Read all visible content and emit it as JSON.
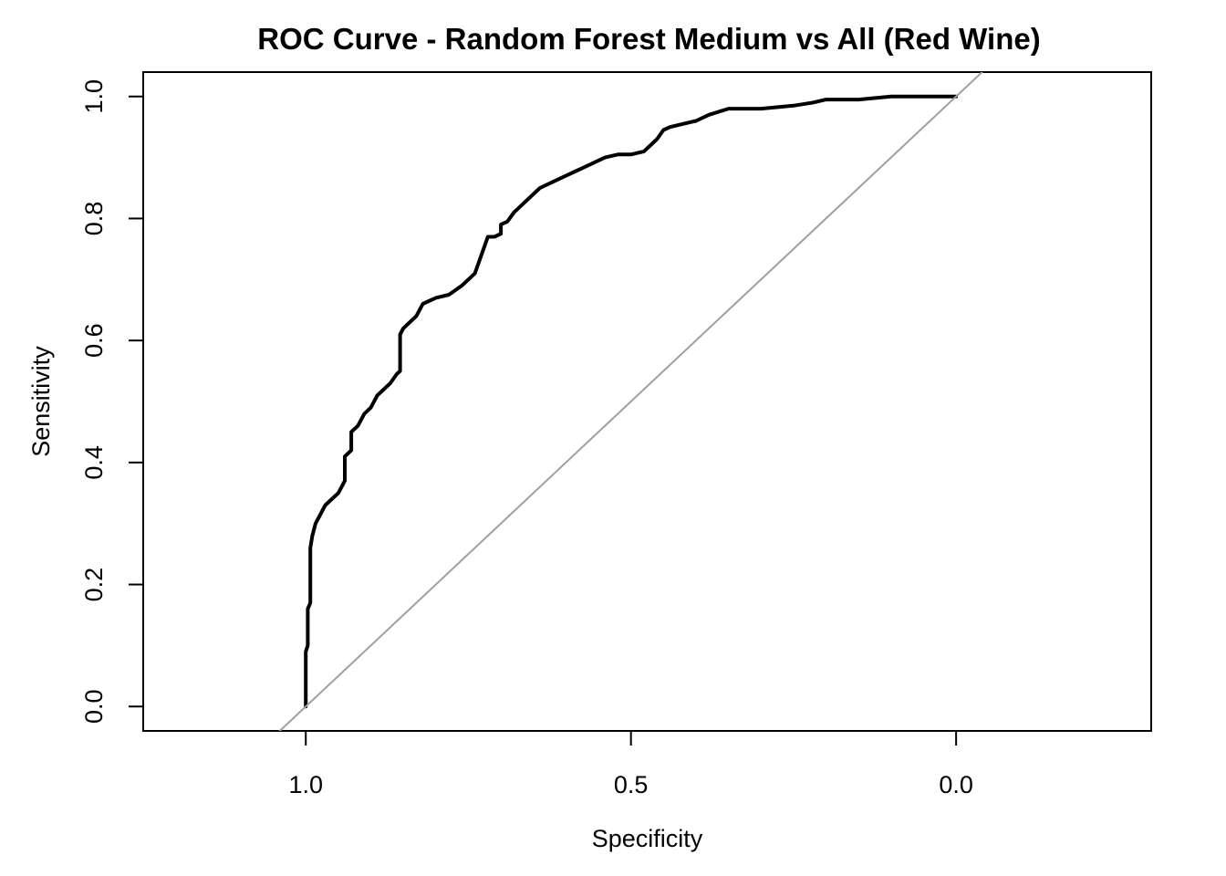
{
  "chart_data": {
    "type": "line",
    "title": "ROC Curve - Random Forest  Medium vs All (Red Wine)",
    "xlabel": "Specificity",
    "ylabel": "Sensitivity",
    "x_reversed": true,
    "xlim": [
      1.25,
      -0.3
    ],
    "ylim": [
      -0.04,
      1.04
    ],
    "xticks": [
      1.0,
      0.5,
      0.0
    ],
    "xtick_labels": [
      "1.0",
      "0.5",
      "0.0"
    ],
    "yticks": [
      0.0,
      0.2,
      0.4,
      0.6,
      0.8,
      1.0
    ],
    "ytick_labels": [
      "0.0",
      "0.2",
      "0.4",
      "0.6",
      "0.8",
      "1.0"
    ],
    "grid": false,
    "legend": "none",
    "series": [
      {
        "role": "roc-curve",
        "color": "#000000",
        "specificity": [
          1.0,
          1.0,
          0.997,
          0.997,
          0.993,
          0.993,
          0.99,
          0.985,
          0.98,
          0.97,
          0.96,
          0.95,
          0.94,
          0.94,
          0.93,
          0.93,
          0.92,
          0.91,
          0.9,
          0.89,
          0.88,
          0.87,
          0.86,
          0.855,
          0.855,
          0.85,
          0.84,
          0.83,
          0.82,
          0.8,
          0.78,
          0.76,
          0.75,
          0.74,
          0.73,
          0.72,
          0.71,
          0.7,
          0.7,
          0.69,
          0.68,
          0.66,
          0.64,
          0.62,
          0.6,
          0.58,
          0.56,
          0.54,
          0.52,
          0.5,
          0.48,
          0.46,
          0.45,
          0.44,
          0.42,
          0.4,
          0.38,
          0.35,
          0.3,
          0.25,
          0.22,
          0.2,
          0.15,
          0.1,
          0.05,
          0.0
        ],
        "sensitivity": [
          0.0,
          0.09,
          0.1,
          0.16,
          0.17,
          0.26,
          0.28,
          0.3,
          0.31,
          0.33,
          0.34,
          0.35,
          0.37,
          0.41,
          0.42,
          0.45,
          0.46,
          0.48,
          0.49,
          0.51,
          0.52,
          0.53,
          0.545,
          0.55,
          0.61,
          0.62,
          0.63,
          0.64,
          0.66,
          0.67,
          0.675,
          0.69,
          0.7,
          0.71,
          0.74,
          0.77,
          0.77,
          0.775,
          0.79,
          0.795,
          0.81,
          0.83,
          0.85,
          0.86,
          0.87,
          0.88,
          0.89,
          0.9,
          0.905,
          0.905,
          0.91,
          0.93,
          0.945,
          0.95,
          0.955,
          0.96,
          0.97,
          0.98,
          0.98,
          0.985,
          0.99,
          0.995,
          0.995,
          1.0,
          1.0,
          1.0
        ]
      },
      {
        "role": "chance-diagonal",
        "color": "#a0a0a0",
        "specificity": [
          1.04,
          -0.04
        ],
        "sensitivity": [
          -0.04,
          1.04
        ]
      }
    ]
  }
}
